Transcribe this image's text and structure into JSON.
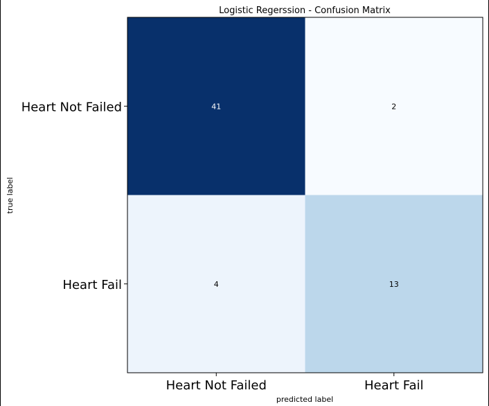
{
  "chart_data": {
    "type": "heatmap",
    "title": "Logistic Regerssion  - Confusion Matrix",
    "xlabel": "predicted label",
    "ylabel": "true label",
    "x_categories": [
      "Heart Not Failed",
      "Heart Fail"
    ],
    "y_categories": [
      "Heart Not Failed",
      "Heart Fail"
    ],
    "values": [
      [
        41,
        2
      ],
      [
        4,
        13
      ]
    ],
    "colormap": "Blues",
    "value_range": [
      2,
      41
    ],
    "colors": {
      "high": "#08306b",
      "low": "#f7fbff",
      "text_dark_bg": "#ffffff",
      "text_light_bg": "#000000"
    }
  }
}
